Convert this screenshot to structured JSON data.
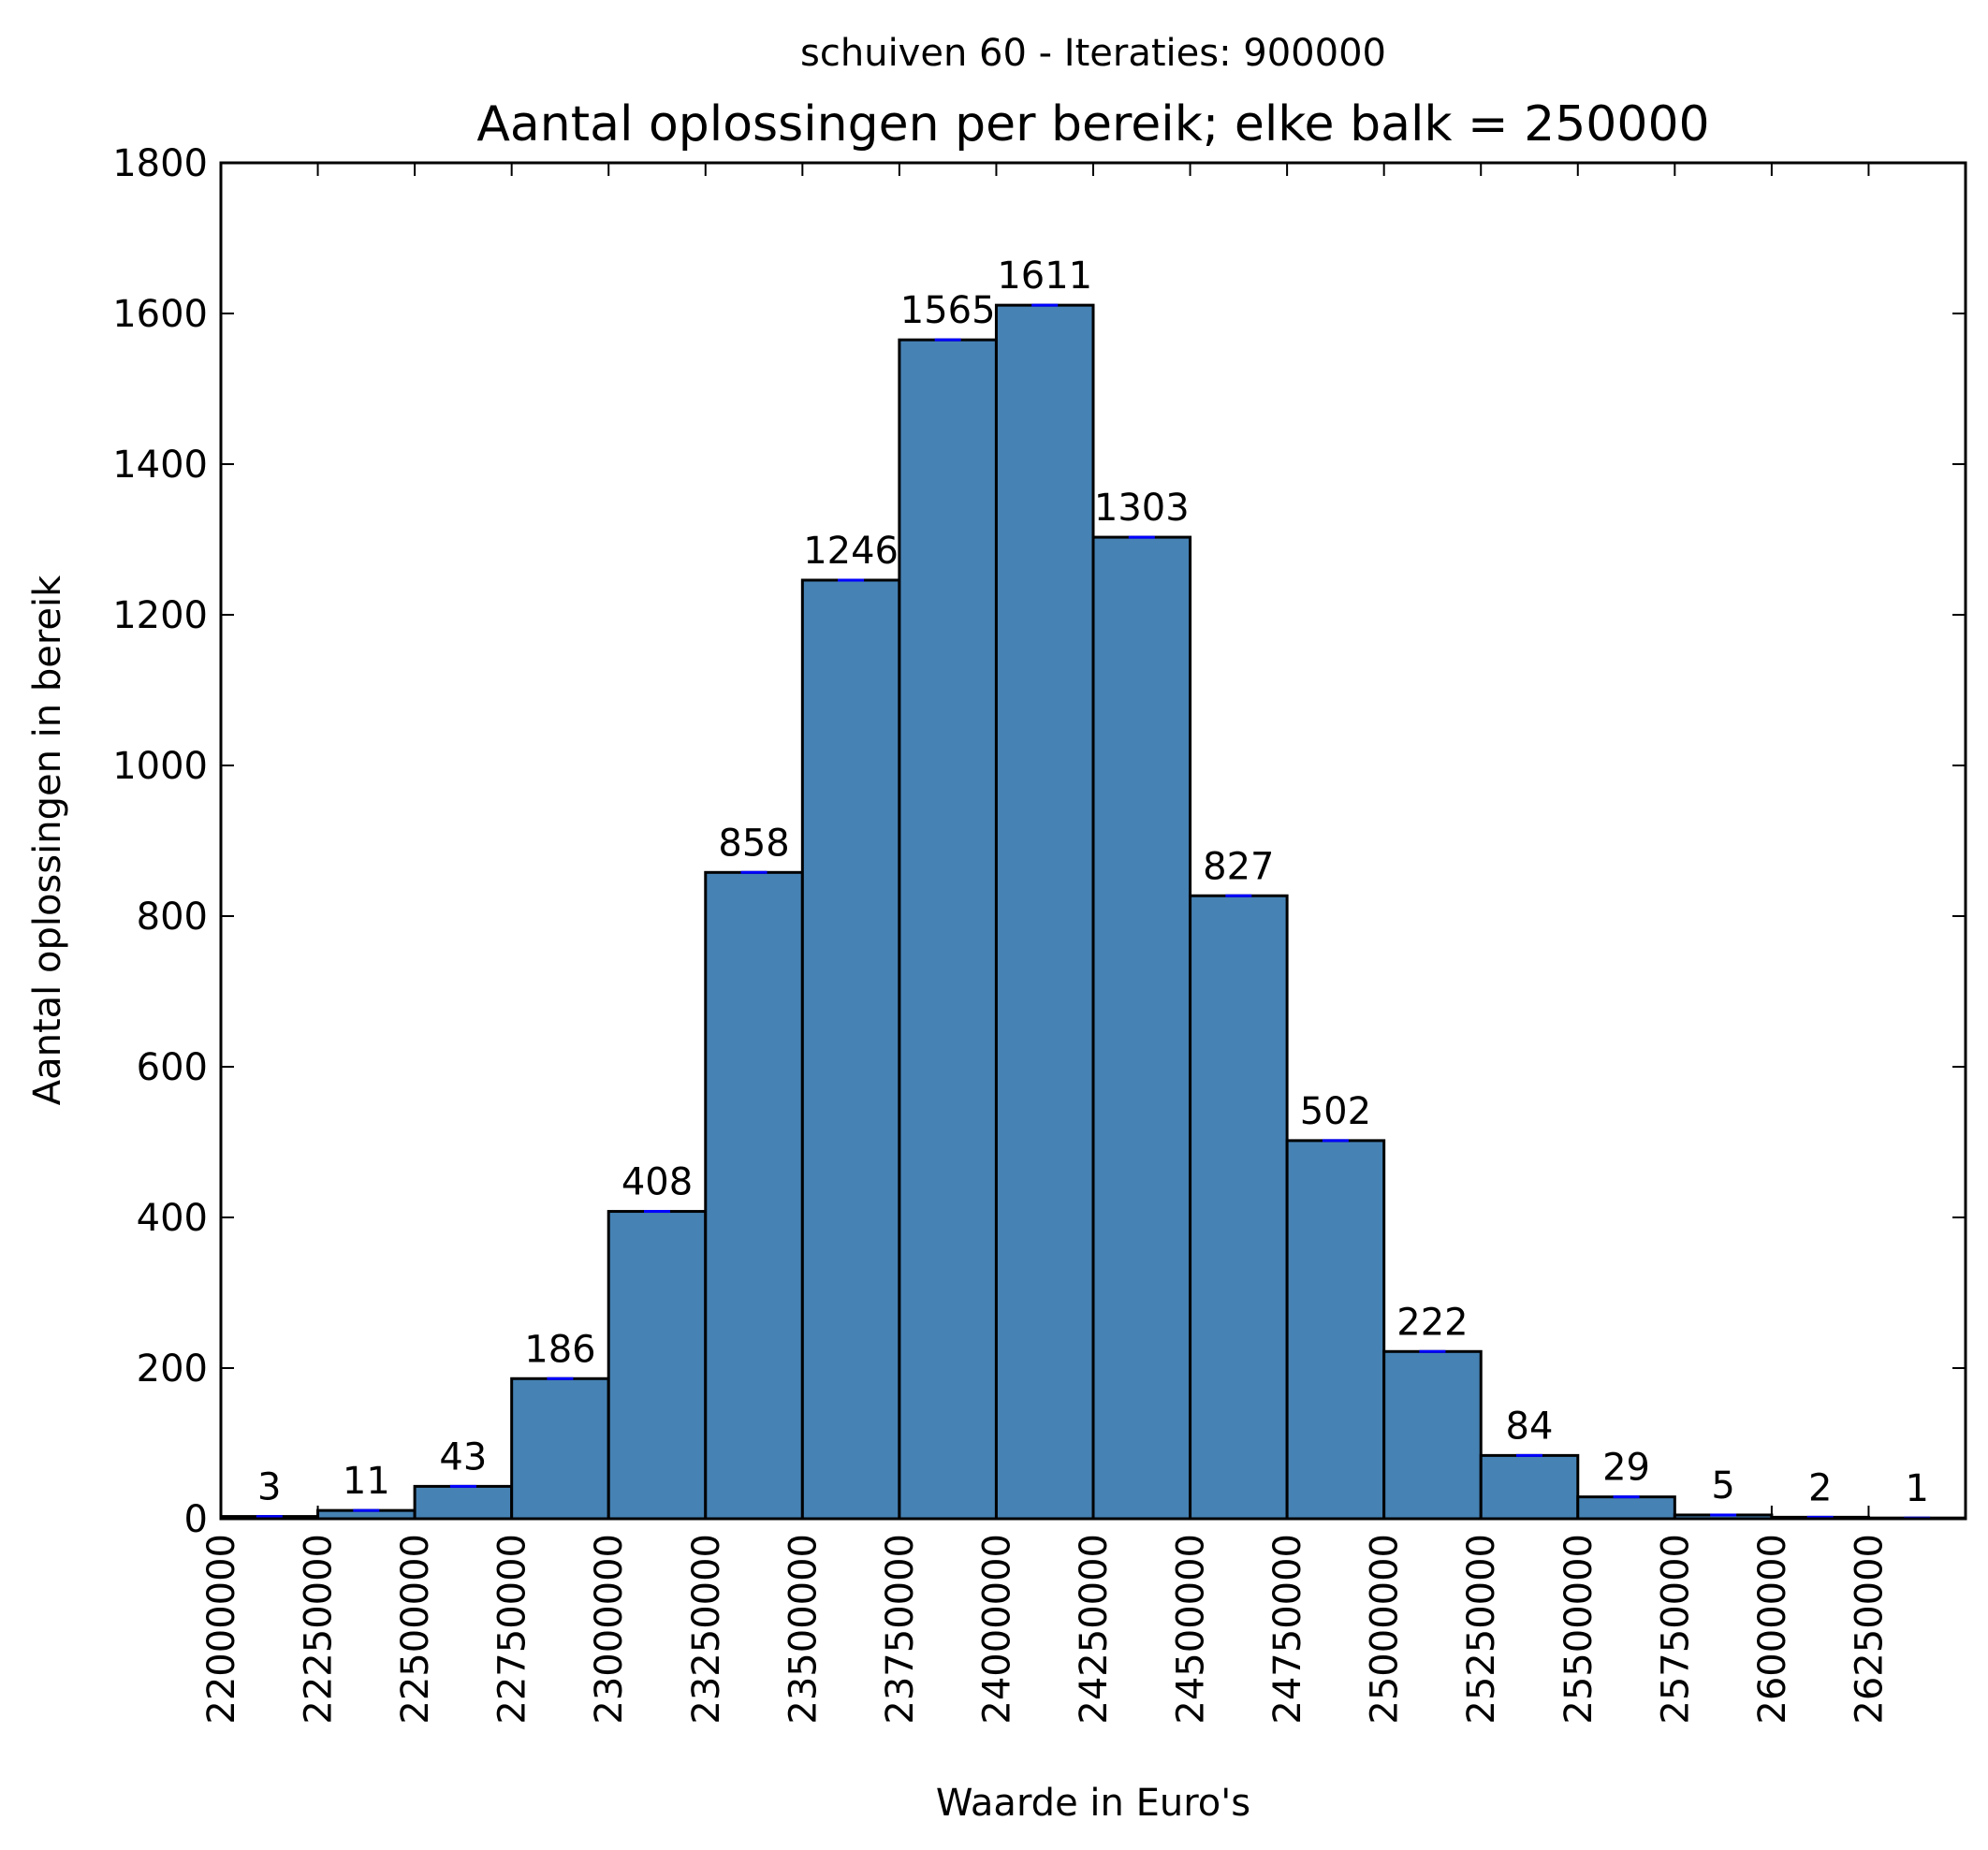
{
  "chart_data": {
    "type": "bar",
    "subtitle": "schuiven 60 - Iteraties: 900000",
    "title": "Aantal oplossingen per bereik; elke balk = 250000",
    "xlabel": "Waarde in Euro's",
    "ylabel": "Aantal oplossingen in bereik",
    "bin_edges": [
      22000000,
      22250000,
      22500000,
      22750000,
      23000000,
      23250000,
      23500000,
      23750000,
      24000000,
      24250000,
      24500000,
      24750000,
      25000000,
      25250000,
      25500000,
      25750000,
      26000000,
      26250000,
      26500000
    ],
    "values": [
      3,
      11,
      43,
      186,
      408,
      858,
      1246,
      1565,
      1611,
      1303,
      827,
      502,
      222,
      84,
      29,
      5,
      2,
      1
    ],
    "data_labels": [
      "3",
      "11",
      "43",
      "186",
      "408",
      "858",
      "1246",
      "1565",
      "1611",
      "1303",
      "827",
      "502",
      "222",
      "84",
      "29",
      "5",
      "2",
      "1"
    ],
    "xticks": [
      "22000000",
      "22250000",
      "22500000",
      "22750000",
      "23000000",
      "23250000",
      "23500000",
      "23750000",
      "24000000",
      "24250000",
      "24500000",
      "24750000",
      "25000000",
      "25250000",
      "25500000",
      "25750000",
      "26000000",
      "26250000"
    ],
    "yticks": [
      "0",
      "200",
      "400",
      "600",
      "800",
      "1000",
      "1200",
      "1400",
      "1600",
      "1800"
    ],
    "xlim": [
      22000000,
      26500000
    ],
    "ylim": [
      0,
      1800
    ],
    "grid": false,
    "bar_color": "#4682b4",
    "edge_color": "#000000",
    "bar_top_mark_color": "#0000ff"
  }
}
